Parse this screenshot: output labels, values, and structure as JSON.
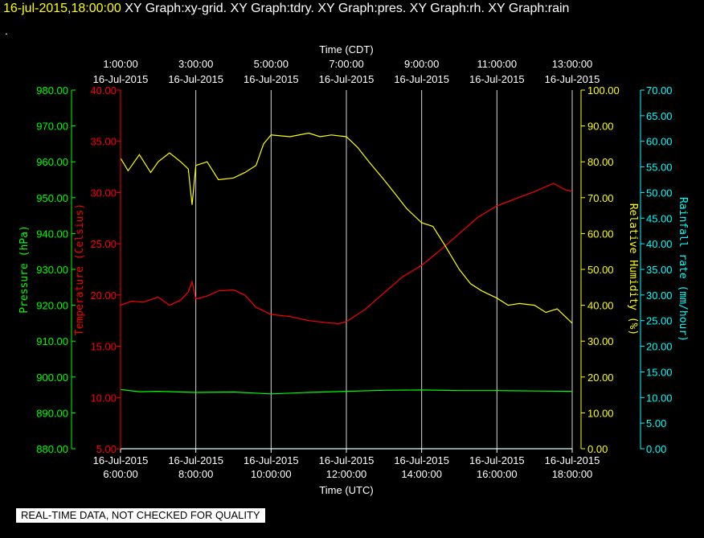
{
  "header": {
    "timestamp": "16-jul-2015,18:00:00",
    "graphs": [
      "XY Graph:xy-grid.",
      "XY Graph:tdry.",
      "XY Graph:pres.",
      "XY Graph:rh.",
      "XY Graph:rain"
    ],
    "dot": "."
  },
  "footer": "REAL-TIME DATA, NOT CHECKED FOR QUALITY",
  "colors": {
    "background": "#000000",
    "grid": "#ffffff",
    "temperature": "#ff0000",
    "pressure": "#00ff00",
    "humidity": "#ffff00",
    "rain": "#00ffff"
  },
  "chart_data": {
    "type": "line",
    "grid": true,
    "x_top": {
      "label": "Time (CDT)",
      "ticks": [
        {
          "time": "1:00:00",
          "date": "16-Jul-2015"
        },
        {
          "time": "3:00:00",
          "date": "16-Jul-2015"
        },
        {
          "time": "5:00:00",
          "date": "16-Jul-2015"
        },
        {
          "time": "7:00:00",
          "date": "16-Jul-2015"
        },
        {
          "time": "9:00:00",
          "date": "16-Jul-2015"
        },
        {
          "time": "11:00:00",
          "date": "16-Jul-2015"
        },
        {
          "time": "13:00:00",
          "date": "16-Jul-2015"
        }
      ]
    },
    "x_bottom": {
      "label": "Time (UTC)",
      "range": [
        "2015-07-16 06:00:00",
        "2015-07-16 18:00:00"
      ],
      "ticks": [
        {
          "date": "16-Jul-2015",
          "time": "6:00:00"
        },
        {
          "date": "16-Jul-2015",
          "time": "8:00:00"
        },
        {
          "date": "16-Jul-2015",
          "time": "10:00:00"
        },
        {
          "date": "16-Jul-2015",
          "time": "12:00:00"
        },
        {
          "date": "16-Jul-2015",
          "time": "14:00:00"
        },
        {
          "date": "16-Jul-2015",
          "time": "16:00:00"
        },
        {
          "date": "16-Jul-2015",
          "time": "18:00:00"
        }
      ]
    },
    "axes": {
      "pressure": {
        "label": "Pressure (hPa)",
        "range": [
          880,
          980
        ],
        "ticks": [
          "980.00",
          "970.00",
          "960.00",
          "950.00",
          "940.00",
          "930.00",
          "920.00",
          "910.00",
          "900.00",
          "890.00",
          "880.00"
        ]
      },
      "temperature": {
        "label": "Temperature (Celsius)",
        "range": [
          5,
          40
        ],
        "ticks": [
          "40.00",
          "35.00",
          "30.00",
          "25.00",
          "20.00",
          "15.00",
          "10.00",
          "5.00"
        ]
      },
      "humidity": {
        "label": "Relative Humidity (%)",
        "range": [
          0,
          100
        ],
        "ticks": [
          "100.00",
          "90.00",
          "80.00",
          "70.00",
          "60.00",
          "50.00",
          "40.00",
          "30.00",
          "20.00",
          "10.00",
          "0.00"
        ]
      },
      "rain": {
        "label": "Rainfall rate (mm/hour)",
        "range": [
          0,
          70
        ],
        "ticks": [
          "70.00",
          "65.00",
          "60.00",
          "55.00",
          "50.00",
          "45.00",
          "40.00",
          "35.00",
          "30.00",
          "25.00",
          "20.00",
          "15.00",
          "10.00",
          "5.00",
          "0.00"
        ]
      }
    },
    "series": [
      {
        "name": "tdry",
        "axis": "temperature",
        "color": "#ff0000",
        "x": [
          6.0,
          6.3,
          6.6,
          7.0,
          7.3,
          7.6,
          7.8,
          7.9,
          8.0,
          8.3,
          8.6,
          9.0,
          9.3,
          9.6,
          10.0,
          10.5,
          11.0,
          11.5,
          11.8,
          12.0,
          12.5,
          13.0,
          13.5,
          14.0,
          14.5,
          15.0,
          15.5,
          16.0,
          16.5,
          17.0,
          17.5,
          17.8,
          18.0
        ],
        "y": [
          19.0,
          19.4,
          19.3,
          19.8,
          19.0,
          19.5,
          20.3,
          21.3,
          19.6,
          19.9,
          20.4,
          20.5,
          20.0,
          18.8,
          18.1,
          17.9,
          17.5,
          17.3,
          17.2,
          17.4,
          18.6,
          20.2,
          21.8,
          22.9,
          24.4,
          26.0,
          27.6,
          28.7,
          29.4,
          30.1,
          30.9,
          30.3,
          30.1
        ]
      },
      {
        "name": "pres",
        "axis": "pressure",
        "color": "#00ff00",
        "x": [
          6.0,
          6.5,
          7.0,
          8.0,
          9.0,
          10.0,
          11.0,
          12.0,
          13.0,
          14.0,
          15.0,
          16.0,
          17.0,
          18.0
        ],
        "y": [
          896.5,
          895.9,
          896.0,
          895.7,
          895.8,
          895.3,
          895.7,
          896.0,
          896.3,
          896.4,
          896.2,
          896.2,
          896.1,
          896.0
        ]
      },
      {
        "name": "rh",
        "axis": "humidity",
        "color": "#ffff00",
        "x": [
          6.0,
          6.2,
          6.5,
          6.8,
          7.0,
          7.3,
          7.6,
          7.8,
          7.9,
          8.0,
          8.3,
          8.6,
          9.0,
          9.3,
          9.6,
          9.8,
          10.0,
          10.5,
          11.0,
          11.3,
          11.6,
          12.0,
          12.3,
          12.6,
          13.0,
          13.3,
          13.6,
          14.0,
          14.3,
          14.6,
          15.0,
          15.3,
          15.6,
          16.0,
          16.3,
          16.6,
          17.0,
          17.3,
          17.6,
          17.9,
          18.0
        ],
        "y": [
          81.0,
          77.5,
          82.0,
          77.0,
          80.0,
          82.5,
          80.0,
          78.0,
          68.0,
          79.0,
          80.0,
          75.0,
          75.5,
          77.0,
          79.0,
          85.0,
          87.5,
          87.0,
          88.0,
          87.0,
          87.5,
          87.0,
          84.0,
          80.0,
          75.0,
          71.0,
          67.0,
          63.0,
          62.0,
          57.0,
          50.0,
          46.0,
          44.0,
          42.0,
          40.0,
          40.5,
          40.0,
          38.0,
          39.0,
          36.0,
          35.0
        ]
      },
      {
        "name": "rain",
        "axis": "rain",
        "color": "#00ffff",
        "x": [
          6.0,
          18.0
        ],
        "y": [
          0.0,
          0.0
        ]
      }
    ]
  }
}
